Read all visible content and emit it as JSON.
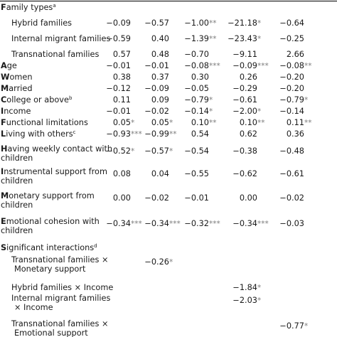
{
  "rows": [
    {
      "label": "Family types",
      "sup": "a",
      "first": "F",
      "rest": "amily types",
      "indent": 0,
      "cells": [
        "",
        "",
        "",
        "",
        ""
      ]
    },
    {
      "label": "Hybrid families",
      "indent": 1,
      "cells": [
        {
          "v": "−0.09",
          "s": ""
        },
        {
          "v": "−0.57",
          "s": ""
        },
        {
          "v": "−1.00",
          "s": "**"
        },
        {
          "v": "−21.18",
          "s": "*"
        },
        {
          "v": "−0.64",
          "s": ""
        }
      ]
    },
    {
      "label": "Internal migrant families",
      "indent": 1,
      "cells": [
        {
          "v": "−0.59",
          "s": ""
        },
        {
          "v": "0.40",
          "s": ""
        },
        {
          "v": "−1.39",
          "s": "**"
        },
        {
          "v": "−23.43",
          "s": "*"
        },
        {
          "v": "−0.25",
          "s": ""
        }
      ]
    },
    {
      "label": "Transnational families",
      "indent": 1,
      "cells": [
        {
          "v": "0.57",
          "s": ""
        },
        {
          "v": "0.48",
          "s": ""
        },
        {
          "v": "−0.70",
          "s": ""
        },
        {
          "v": "−9.11",
          "s": ""
        },
        {
          "v": "2.66",
          "s": ""
        }
      ]
    },
    {
      "label": "Age",
      "first": "A",
      "rest": "ge",
      "indent": 0,
      "cells": [
        {
          "v": "−0.01",
          "s": ""
        },
        {
          "v": "−0.01",
          "s": ""
        },
        {
          "v": "−0.08",
          "s": "***"
        },
        {
          "v": "−0.09",
          "s": "***"
        },
        {
          "v": "−0.08",
          "s": "**"
        }
      ]
    },
    {
      "label": "Women",
      "first": "W",
      "rest": "omen",
      "indent": 0,
      "cells": [
        {
          "v": "0.38",
          "s": ""
        },
        {
          "v": "0.37",
          "s": ""
        },
        {
          "v": "0.30",
          "s": ""
        },
        {
          "v": "0.26",
          "s": ""
        },
        {
          "v": "−0.20",
          "s": ""
        }
      ]
    },
    {
      "label": "Married",
      "first": "M",
      "rest": "arried",
      "indent": 0,
      "cells": [
        {
          "v": "−0.12",
          "s": ""
        },
        {
          "v": "−0.09",
          "s": ""
        },
        {
          "v": "−0.05",
          "s": ""
        },
        {
          "v": "−0.29",
          "s": ""
        },
        {
          "v": "−0.20",
          "s": ""
        }
      ]
    },
    {
      "label": "College or above",
      "sup": "b",
      "first": "C",
      "rest": "ollege or above",
      "indent": 0,
      "cells": [
        {
          "v": "0.11",
          "s": ""
        },
        {
          "v": "0.09",
          "s": ""
        },
        {
          "v": "−0.79",
          "s": "*"
        },
        {
          "v": "−0.61",
          "s": ""
        },
        {
          "v": "−0.79",
          "s": "*"
        }
      ]
    },
    {
      "label": "Income",
      "first": "I",
      "rest": "ncome",
      "indent": 0,
      "cells": [
        {
          "v": "−0.01",
          "s": ""
        },
        {
          "v": "−0.02",
          "s": ""
        },
        {
          "v": "−0.14",
          "s": "*"
        },
        {
          "v": "−2.00",
          "s": "*"
        },
        {
          "v": "−0.14",
          "s": ""
        }
      ]
    },
    {
      "label": "Functional limitations",
      "first": "F",
      "rest": "unctional limitations",
      "indent": 0,
      "cells": [
        {
          "v": "0.05",
          "s": "*"
        },
        {
          "v": "0.05",
          "s": "*"
        },
        {
          "v": "0.10",
          "s": "**"
        },
        {
          "v": "0.10",
          "s": "**"
        },
        {
          "v": "0.11",
          "s": "**"
        }
      ]
    },
    {
      "label": "Living with others",
      "sup": "c",
      "first": "L",
      "rest": "iving with others",
      "indent": 0,
      "cells": [
        {
          "v": "−0.93",
          "s": "***"
        },
        {
          "v": "−0.99",
          "s": "**"
        },
        {
          "v": "0.54",
          "s": ""
        },
        {
          "v": "0.62",
          "s": ""
        },
        {
          "v": "0.36",
          "s": ""
        }
      ]
    },
    {
      "label": "Having weekly contact with",
      "label2": "children",
      "first": "H",
      "rest": "aving weekly contact with",
      "indent": 0,
      "cells": [
        {
          "v": "−0.52",
          "s": "*"
        },
        {
          "v": "−0.57",
          "s": "*"
        },
        {
          "v": "−0.54",
          "s": ""
        },
        {
          "v": "−0.38",
          "s": ""
        },
        {
          "v": "−0.48",
          "s": ""
        }
      ]
    },
    {
      "label": "Instrumental support from",
      "label2": "children",
      "first": "I",
      "rest": "nstrumental support from",
      "indent": 0,
      "cells": [
        {
          "v": "0.08",
          "s": ""
        },
        {
          "v": "0.04",
          "s": ""
        },
        {
          "v": "−0.55",
          "s": ""
        },
        {
          "v": "−0.62",
          "s": ""
        },
        {
          "v": "−0.61",
          "s": ""
        }
      ]
    },
    {
      "label": "Monetary support from",
      "label2": "children",
      "first": "M",
      "rest": "onetary support from",
      "indent": 0,
      "cells": [
        {
          "v": "0.00",
          "s": ""
        },
        {
          "v": "−0.02",
          "s": ""
        },
        {
          "v": "−0.01",
          "s": ""
        },
        {
          "v": "0.00",
          "s": ""
        },
        {
          "v": "−0.02",
          "s": ""
        }
      ]
    },
    {
      "label": "Emotional cohesion with",
      "label2": "children",
      "first": "E",
      "rest": "motional cohesion with",
      "indent": 0,
      "cells": [
        {
          "v": "−0.34",
          "s": "***"
        },
        {
          "v": "−0.34",
          "s": "***"
        },
        {
          "v": "−0.32",
          "s": "***"
        },
        {
          "v": "−0.34",
          "s": "***"
        },
        {
          "v": "−0.03",
          "s": ""
        }
      ]
    },
    {
      "label": "Significant interactions",
      "sup": "d",
      "first": "S",
      "rest": "ignificant interactions",
      "indent": 0,
      "cells": [
        "",
        "",
        "",
        "",
        ""
      ]
    },
    {
      "label": "Transnational families ×",
      "label2": "Monetary support",
      "indent": 1,
      "cells": [
        {
          "v": "",
          "s": ""
        },
        {
          "v": "−0.26",
          "s": "*"
        },
        {
          "v": "",
          "s": ""
        },
        {
          "v": "",
          "s": ""
        },
        {
          "v": "",
          "s": ""
        }
      ]
    },
    {
      "label": "Hybrid families × Income",
      "indent": 1,
      "cells": [
        {
          "v": "",
          "s": ""
        },
        {
          "v": "",
          "s": ""
        },
        {
          "v": "",
          "s": ""
        },
        {
          "v": "−1.84",
          "s": "*"
        },
        {
          "v": "",
          "s": ""
        }
      ]
    },
    {
      "label": "Internal migrant families",
      "label2": "× Income",
      "indent": 1,
      "cells": [
        {
          "v": "",
          "s": ""
        },
        {
          "v": "",
          "s": ""
        },
        {
          "v": "",
          "s": ""
        },
        {
          "v": "−2.03",
          "s": "*"
        },
        {
          "v": "",
          "s": ""
        }
      ]
    },
    {
      "label": "Transnational families ×",
      "label2": "Emotional support",
      "indent": 1,
      "cells": [
        {
          "v": "",
          "s": ""
        },
        {
          "v": "",
          "s": ""
        },
        {
          "v": "",
          "s": ""
        },
        {
          "v": "",
          "s": ""
        },
        {
          "v": "−0.77",
          "s": "*"
        }
      ]
    }
  ]
}
